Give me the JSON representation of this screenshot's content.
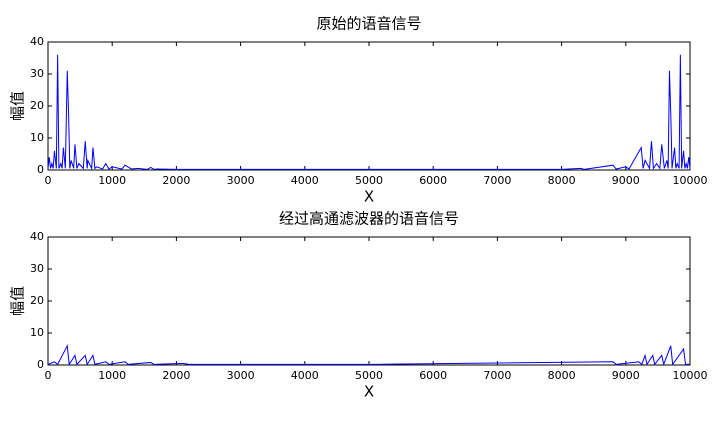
{
  "chart_data": [
    {
      "type": "line",
      "title": "原始的语音信号",
      "xlabel": "X",
      "ylabel": "幅值",
      "x": [
        0,
        20,
        40,
        60,
        80,
        100,
        130,
        150,
        170,
        200,
        220,
        240,
        270,
        300,
        320,
        340,
        360,
        400,
        420,
        450,
        480,
        550,
        580,
        610,
        620,
        680,
        700,
        730,
        760,
        850,
        900,
        950,
        1000,
        1150,
        1200,
        1300,
        1400,
        1550,
        1600,
        1650,
        1700,
        2000,
        5000,
        8000,
        8300,
        8350,
        8800,
        8850,
        9000,
        9050,
        9240,
        9270,
        9300,
        9370,
        9400,
        9430,
        9480,
        9530,
        9560,
        9600,
        9640,
        9660,
        9680,
        9700,
        9720,
        9760,
        9780,
        9800,
        9830,
        9850,
        9870,
        9900,
        9920,
        9940,
        9960,
        9980,
        10000
      ],
      "series": [
        {
          "color": "#0000ff",
          "values": [
            0.5,
            4,
            0.5,
            2,
            0.5,
            6,
            0.5,
            36,
            0.5,
            2,
            0.5,
            7,
            0.5,
            31,
            18,
            0.5,
            3,
            0.5,
            8,
            0.5,
            2,
            0.5,
            9,
            0.5,
            3,
            0.5,
            7,
            0.5,
            1,
            0.3,
            2,
            0.3,
            1,
            0.3,
            1.5,
            0.3,
            0.5,
            0.2,
            0.8,
            0.2,
            0.3,
            0.2,
            0.2,
            0.2,
            0.5,
            0.2,
            1.5,
            0.3,
            1,
            0.3,
            7,
            0.5,
            3,
            0.5,
            9,
            0.5,
            2,
            0.5,
            8,
            0.5,
            3,
            0.5,
            31,
            18,
            0.5,
            7,
            0.5,
            2,
            0.5,
            36,
            0.5,
            6,
            0.5,
            2,
            0.5,
            4,
            0.5
          ]
        }
      ],
      "xlim": [
        0,
        10000
      ],
      "ylim": [
        0,
        40
      ],
      "xticks": [
        0,
        1000,
        2000,
        3000,
        4000,
        5000,
        6000,
        7000,
        8000,
        9000,
        10000
      ],
      "yticks": [
        0,
        10,
        20,
        30,
        40
      ]
    },
    {
      "type": "line",
      "title": "经过高通滤波器的语音信号",
      "xlabel": "X",
      "ylabel": "幅值",
      "x": [
        0,
        100,
        150,
        300,
        330,
        420,
        450,
        580,
        610,
        700,
        730,
        900,
        950,
        1200,
        1250,
        1600,
        1650,
        2100,
        2200,
        5000,
        8800,
        8850,
        9200,
        9250,
        9300,
        9330,
        9420,
        9450,
        9560,
        9590,
        9700,
        9730,
        9900,
        9930,
        10000
      ],
      "series": [
        {
          "color": "#0000ff",
          "values": [
            0.2,
            1,
            0.2,
            6,
            0.2,
            3,
            0.2,
            3,
            0.2,
            3,
            0.2,
            1,
            0.2,
            1,
            0.2,
            0.8,
            0.2,
            0.5,
            0.2,
            0.2,
            1,
            0.2,
            1,
            0.2,
            3,
            0.2,
            3,
            0.2,
            3,
            0.2,
            6,
            0.2,
            5,
            0.2,
            0.2
          ]
        }
      ],
      "xlim": [
        0,
        10000
      ],
      "ylim": [
        0,
        40
      ],
      "xticks": [
        0,
        1000,
        2000,
        3000,
        4000,
        5000,
        6000,
        7000,
        8000,
        9000,
        10000
      ],
      "yticks": [
        0,
        10,
        20,
        30,
        40
      ]
    }
  ]
}
